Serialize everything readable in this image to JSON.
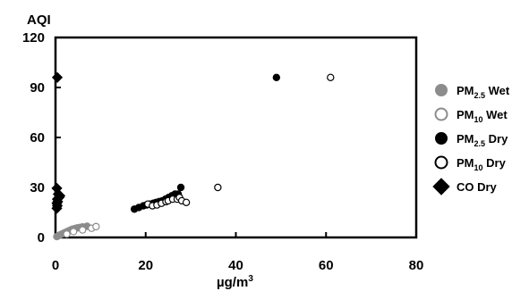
{
  "chart_data": {
    "type": "scatter",
    "ylabel": "AQI",
    "xlabel": {
      "base": "µg/m",
      "sup": "3"
    },
    "xlim": [
      0,
      80
    ],
    "ylim": [
      0,
      120
    ],
    "xticks": [
      "0",
      "20",
      "40",
      "60",
      "80"
    ],
    "yticks": [
      "0",
      "30",
      "60",
      "90",
      "120"
    ],
    "grid": false,
    "legend_position": "right",
    "series": [
      {
        "key": "pm25_wet",
        "legend": {
          "pre": "PM",
          "sub": "2.5",
          "post": " Wet"
        },
        "marker": "circle",
        "fill": "#8c8c8c",
        "stroke": "#8c8c8c",
        "points": [
          [
            0.3,
            0.5
          ],
          [
            0.6,
            1.0
          ],
          [
            1.0,
            1.5
          ],
          [
            1.4,
            2.0
          ],
          [
            1.8,
            2.5
          ],
          [
            2.2,
            3.0
          ],
          [
            2.6,
            3.5
          ],
          [
            3.0,
            4.0
          ],
          [
            3.4,
            4.5
          ],
          [
            3.8,
            5.0
          ],
          [
            4.3,
            5.3
          ],
          [
            4.8,
            5.7
          ],
          [
            5.4,
            6.0
          ],
          [
            6.0,
            6.3
          ],
          [
            7.0,
            6.7
          ]
        ]
      },
      {
        "key": "pm10_wet",
        "legend": {
          "pre": "PM",
          "sub": "10",
          "post": " Wet"
        },
        "marker": "circle",
        "fill": "#ffffff",
        "stroke": "#8c8c8c",
        "points": [
          [
            2.5,
            2.0
          ],
          [
            4.0,
            3.5
          ],
          [
            6.0,
            4.5
          ],
          [
            8.0,
            5.5
          ],
          [
            9.0,
            6.5
          ]
        ]
      },
      {
        "key": "pm25_dry",
        "legend": {
          "pre": "PM",
          "sub": "2.5",
          "post": " Dry"
        },
        "marker": "circle",
        "fill": "#000000",
        "stroke": "#000000",
        "points": [
          [
            17.5,
            17
          ],
          [
            18.5,
            18
          ],
          [
            19.5,
            19
          ],
          [
            20.2,
            19.5
          ],
          [
            21.0,
            20
          ],
          [
            21.7,
            20.5
          ],
          [
            22.3,
            21
          ],
          [
            23.0,
            21.5
          ],
          [
            23.7,
            22
          ],
          [
            24.4,
            23
          ],
          [
            25.1,
            24
          ],
          [
            25.8,
            25
          ],
          [
            26.5,
            26
          ],
          [
            27.2,
            26
          ],
          [
            27.8,
            30
          ],
          [
            49.0,
            96
          ]
        ]
      },
      {
        "key": "pm10_dry",
        "legend": {
          "pre": "PM",
          "sub": "10",
          "post": " Dry"
        },
        "marker": "circle",
        "fill": "#ffffff",
        "stroke": "#000000",
        "points": [
          [
            20.5,
            20
          ],
          [
            21.5,
            19
          ],
          [
            22.5,
            19.5
          ],
          [
            23.5,
            20.5
          ],
          [
            24.5,
            21.5
          ],
          [
            25.0,
            22
          ],
          [
            26.0,
            23
          ],
          [
            27.0,
            23
          ],
          [
            27.5,
            24
          ],
          [
            28.0,
            22
          ],
          [
            29.0,
            21
          ],
          [
            36.0,
            30
          ],
          [
            61.0,
            96
          ]
        ]
      },
      {
        "key": "co_dry",
        "legend": {
          "pre": "CO",
          "sub": "",
          "post": " Dry"
        },
        "marker": "diamond",
        "fill": "#000000",
        "stroke": "#000000",
        "points": [
          [
            0.3,
            17.5
          ],
          [
            0.4,
            19
          ],
          [
            0.3,
            20.5
          ],
          [
            0.5,
            21.5
          ],
          [
            0.4,
            23
          ],
          [
            0.8,
            24
          ],
          [
            1.0,
            25
          ],
          [
            0.6,
            26
          ],
          [
            0.3,
            29.5
          ],
          [
            0.4,
            96
          ]
        ]
      }
    ]
  }
}
